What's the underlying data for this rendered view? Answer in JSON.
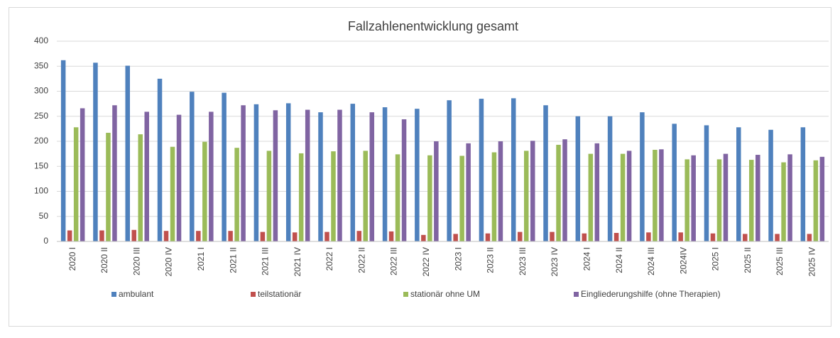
{
  "chart_data": {
    "type": "bar",
    "title": "Fallzahlenentwicklung gesamt",
    "categories": [
      "2020 I",
      "2020 II",
      "2020 III",
      "2020 IV",
      "2021 I",
      "2021 II",
      "2021 III",
      "2021 IV",
      "2022 I",
      "2022 II",
      "2022 III",
      "2022 IV",
      "2023 I",
      "2023 II",
      "2023 III",
      "2023 IV",
      "2024 I",
      "2024 II",
      "2024 III",
      "2024IV",
      "2025 I",
      "2025 II",
      "2025 III",
      "2025 IV"
    ],
    "series": [
      {
        "name": "ambulant",
        "color": "#4f81bd",
        "values": [
          362,
          357,
          351,
          325,
          299,
          297,
          274,
          276,
          258,
          275,
          268,
          265,
          282,
          285,
          286,
          272,
          250,
          250,
          258,
          235,
          232,
          228,
          223,
          228
        ]
      },
      {
        "name": "teilstationär",
        "color": "#c0504d",
        "values": [
          22,
          22,
          23,
          21,
          21,
          21,
          19,
          18,
          19,
          21,
          20,
          13,
          15,
          16,
          19,
          19,
          16,
          17,
          18,
          18,
          16,
          15,
          15,
          15
        ]
      },
      {
        "name": "stationär ohne UM",
        "color": "#9bbb59",
        "values": [
          228,
          217,
          214,
          189,
          199,
          187,
          181,
          176,
          180,
          181,
          174,
          172,
          171,
          178,
          181,
          193,
          175,
          175,
          183,
          164,
          164,
          163,
          158,
          162
        ]
      },
      {
        "name": "Eingliederungshilfe (ohne Therapien)",
        "color": "#8064a2",
        "values": [
          266,
          272,
          259,
          253,
          259,
          272,
          262,
          263,
          263,
          258,
          244,
          200,
          196,
          200,
          201,
          204,
          196,
          181,
          184,
          172,
          175,
          173,
          174,
          169
        ]
      }
    ],
    "ylim": [
      0,
      400
    ],
    "yticks": [
      0,
      50,
      100,
      150,
      200,
      250,
      300,
      350,
      400
    ],
    "grid": true,
    "legend": "bottom"
  }
}
